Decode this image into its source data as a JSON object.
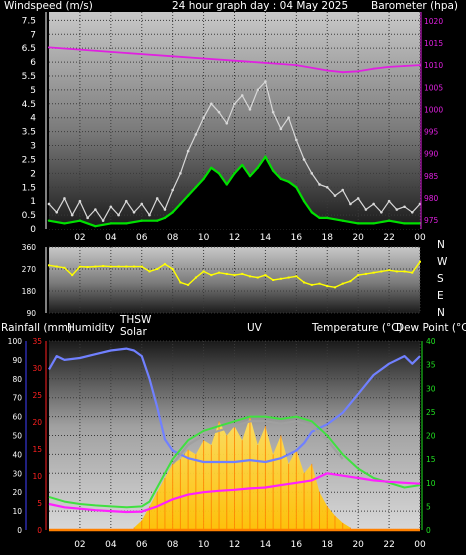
{
  "header": {
    "left": "Windspeed (m/s)",
    "center": "24 hour graph day : 04 May 2025",
    "right": "Barometer (hpa)"
  },
  "middle_header": {
    "rain": "Rainfall (mm)",
    "humidity": "Humidity",
    "thsw": "THSW",
    "solar": "Solar",
    "uv": "UV",
    "temperature": "Temperature (°C)",
    "dewpoint": "Dew Point (°C)"
  },
  "compass_labels": [
    "N",
    "W",
    "S",
    "E",
    "N"
  ],
  "colors": {
    "gust": "#d8d8d8",
    "avg_wind": "#00e000",
    "barometer": "#e020e0",
    "direction": "#ffff00",
    "humidity": "#7080ff",
    "thsw": "#a0a0a0",
    "temperature": "#40e040",
    "dewpoint": "#ff20ff",
    "solar": "#ffd000",
    "uv": "#ff8000",
    "rain": "#ff3030",
    "axis_left": "#ffffff",
    "axis_red": "#ff2020",
    "axis_blue": "#4040ff",
    "axis_green": "#20e020",
    "axis_magenta": "#e020e0"
  },
  "chart_data": [
    {
      "type": "line",
      "name": "wind_barometer",
      "title": "24 hour graph day : 04 May 2025",
      "ylabel": "Windspeed (m/s)",
      "y2label": "Barometer (hpa)",
      "ylim": [
        0,
        7.8
      ],
      "y2lim": [
        973,
        1022
      ],
      "yticks": [
        "0",
        "0.5",
        "1",
        "1.5",
        "2",
        "2.5",
        "3",
        "3.5",
        "4",
        "4.5",
        "5",
        "5.5",
        "6",
        "6.5",
        "7",
        "7.5"
      ],
      "y2ticks": [
        "975",
        "980",
        "985",
        "990",
        "995",
        "1000",
        "1005",
        "1010",
        "1015",
        "1020"
      ],
      "xticks": [
        "02",
        "04",
        "06",
        "08",
        "10",
        "12",
        "14",
        "16",
        "18",
        "20",
        "22",
        "00"
      ],
      "series": [
        {
          "name": "gust",
          "x": [
            0,
            0.5,
            1,
            1.5,
            2,
            2.5,
            3,
            3.5,
            4,
            4.5,
            5,
            5.5,
            6,
            6.5,
            7,
            7.5,
            8,
            8.5,
            9,
            9.5,
            10,
            10.5,
            11,
            11.5,
            12,
            12.5,
            13,
            13.5,
            14,
            14.5,
            15,
            15.5,
            16,
            16.5,
            17,
            17.5,
            18,
            18.5,
            19,
            19.5,
            20,
            20.5,
            21,
            21.5,
            22,
            22.5,
            23,
            23.5,
            24
          ],
          "values": [
            0.9,
            0.6,
            1.1,
            0.5,
            1.0,
            0.4,
            0.7,
            0.3,
            0.8,
            0.5,
            1.0,
            0.6,
            0.9,
            0.5,
            1.1,
            0.7,
            1.4,
            2.0,
            2.8,
            3.4,
            4.0,
            4.5,
            4.2,
            3.8,
            4.5,
            4.8,
            4.3,
            5.0,
            5.3,
            4.2,
            3.6,
            4.0,
            3.2,
            2.5,
            2.0,
            1.6,
            1.5,
            1.2,
            1.4,
            0.9,
            1.1,
            0.7,
            0.9,
            0.6,
            1.0,
            0.7,
            0.8,
            0.6,
            0.9
          ]
        },
        {
          "name": "average",
          "x": [
            0,
            1,
            2,
            3,
            4,
            5,
            6,
            7,
            7.5,
            8,
            8.5,
            9,
            9.5,
            10,
            10.5,
            11,
            11.5,
            12,
            12.5,
            13,
            13.5,
            14,
            14.5,
            15,
            15.5,
            16,
            16.5,
            17,
            17.5,
            18,
            19,
            20,
            21,
            22,
            23,
            24
          ],
          "values": [
            0.3,
            0.2,
            0.3,
            0.1,
            0.2,
            0.2,
            0.3,
            0.3,
            0.4,
            0.6,
            0.9,
            1.2,
            1.5,
            1.8,
            2.2,
            2.0,
            1.6,
            2.0,
            2.3,
            1.9,
            2.2,
            2.6,
            2.1,
            1.8,
            1.7,
            1.5,
            1.0,
            0.6,
            0.4,
            0.4,
            0.3,
            0.2,
            0.2,
            0.3,
            0.2,
            0.2
          ]
        },
        {
          "name": "barometer",
          "x": [
            0,
            2,
            4,
            6,
            8,
            10,
            12,
            14,
            16,
            18,
            19,
            20,
            21,
            22,
            23,
            24
          ],
          "values": [
            1014.0,
            1013.5,
            1013.0,
            1012.5,
            1012.0,
            1011.5,
            1011.0,
            1010.5,
            1010.0,
            1008.8,
            1008.4,
            1008.6,
            1009.2,
            1009.6,
            1009.8,
            1010.0
          ]
        }
      ]
    },
    {
      "type": "scatter",
      "name": "wind_direction",
      "ylim": [
        90,
        360
      ],
      "yticks": [
        "90",
        "180",
        "270",
        "360"
      ],
      "series": [
        {
          "name": "direction",
          "x": [
            0,
            0.5,
            1,
            1.5,
            2,
            2.5,
            3,
            3.5,
            4,
            4.5,
            5,
            5.5,
            6,
            6.5,
            7,
            7.5,
            8,
            8.5,
            9,
            9.5,
            10,
            10.5,
            11,
            11.5,
            12,
            12.5,
            13,
            13.5,
            14,
            14.5,
            15,
            15.5,
            16,
            16.5,
            17,
            17.5,
            18,
            18.5,
            19,
            19.5,
            20,
            20.5,
            21,
            21.5,
            22,
            22.5,
            23,
            23.5,
            24
          ],
          "values": [
            285,
            280,
            275,
            245,
            280,
            278,
            280,
            282,
            280,
            280,
            280,
            280,
            280,
            260,
            270,
            290,
            270,
            215,
            205,
            235,
            260,
            245,
            255,
            250,
            245,
            250,
            240,
            235,
            245,
            225,
            230,
            235,
            240,
            215,
            205,
            210,
            200,
            195,
            210,
            220,
            245,
            250,
            255,
            260,
            265,
            260,
            260,
            255,
            300
          ]
        }
      ]
    },
    {
      "type": "line",
      "name": "temperature_humidity",
      "ylabel": "Rainfall (mm)",
      "ylim_humidity": [
        0,
        100
      ],
      "ylim_rain": [
        0,
        35
      ],
      "ylim_temp": [
        0,
        40
      ],
      "yticks_humidity": [
        "0",
        "10",
        "20",
        "30",
        "40",
        "50",
        "60",
        "70",
        "80",
        "90",
        "100"
      ],
      "yticks_rain": [
        "0",
        "5",
        "10",
        "15",
        "20",
        "25",
        "30",
        "35"
      ],
      "yticks_temp": [
        "0",
        "5",
        "10",
        "15",
        "20",
        "25",
        "30",
        "35",
        "40"
      ],
      "xticks": [
        "02",
        "04",
        "06",
        "08",
        "10",
        "12",
        "14",
        "16",
        "18",
        "20",
        "22",
        "00"
      ],
      "series": [
        {
          "name": "humidity",
          "x": [
            0,
            0.5,
            1,
            2,
            3,
            4,
            5,
            5.5,
            6,
            6.5,
            7,
            7.5,
            8,
            9,
            10,
            11,
            12,
            13,
            14,
            15,
            16,
            16.5,
            17,
            18,
            19,
            20,
            21,
            22,
            23,
            23.5,
            24
          ],
          "values": [
            85,
            92,
            90,
            91,
            93,
            95,
            96,
            95,
            92,
            80,
            65,
            48,
            42,
            38,
            36,
            36,
            36,
            37,
            36,
            38,
            42,
            46,
            52,
            56,
            62,
            72,
            82,
            88,
            92,
            88,
            92
          ]
        },
        {
          "name": "temperature",
          "x": [
            0,
            1,
            2,
            3,
            4,
            5,
            6,
            6.5,
            7,
            7.5,
            8,
            9,
            10,
            11,
            12,
            13,
            14,
            15,
            16,
            17,
            18,
            19,
            20,
            21,
            22,
            23,
            24
          ],
          "values": [
            7,
            6,
            5.5,
            5.2,
            5,
            4.8,
            5,
            6,
            9,
            12,
            15,
            19,
            21,
            22,
            23,
            24,
            24,
            23.5,
            24,
            23,
            20,
            16,
            13,
            11,
            10,
            9,
            9.5
          ]
        },
        {
          "name": "thsw",
          "x": [
            8,
            9,
            10,
            11,
            12,
            13,
            14,
            15,
            16,
            17,
            18,
            19
          ],
          "values": [
            14,
            18,
            20,
            21,
            22,
            23,
            23,
            22.5,
            23,
            22,
            19,
            15
          ]
        },
        {
          "name": "dewpoint",
          "x": [
            0,
            1,
            2,
            3,
            4,
            5,
            6,
            7,
            8,
            9,
            10,
            11,
            12,
            13,
            14,
            15,
            16,
            17,
            18,
            19,
            20,
            21,
            22,
            23,
            24
          ],
          "values": [
            5.5,
            4.8,
            4.5,
            4.2,
            4,
            3.8,
            3.9,
            5,
            6.5,
            7.5,
            8,
            8.3,
            8.5,
            8.8,
            9,
            9.5,
            10,
            10.5,
            12,
            11.5,
            11,
            10.5,
            10.2,
            10,
            9.8
          ]
        },
        {
          "name": "solar",
          "x": [
            5.5,
            6,
            6.5,
            7,
            7.5,
            8,
            8.5,
            9,
            9.5,
            10,
            10.5,
            11,
            11.5,
            12,
            12.5,
            13,
            13.5,
            14,
            14.5,
            15,
            15.5,
            16,
            16.5,
            17,
            17.5,
            18,
            18.5,
            19,
            19.5
          ],
          "values": [
            0.5,
            2,
            5,
            8,
            11,
            14,
            15,
            17,
            16,
            19,
            18,
            23,
            20,
            22,
            19,
            24,
            18,
            22,
            16,
            20,
            14,
            17,
            12,
            14,
            8,
            5,
            3,
            1.5,
            0.5
          ]
        },
        {
          "name": "rain",
          "x": [
            0,
            24
          ],
          "values": [
            0,
            0
          ]
        }
      ]
    }
  ]
}
